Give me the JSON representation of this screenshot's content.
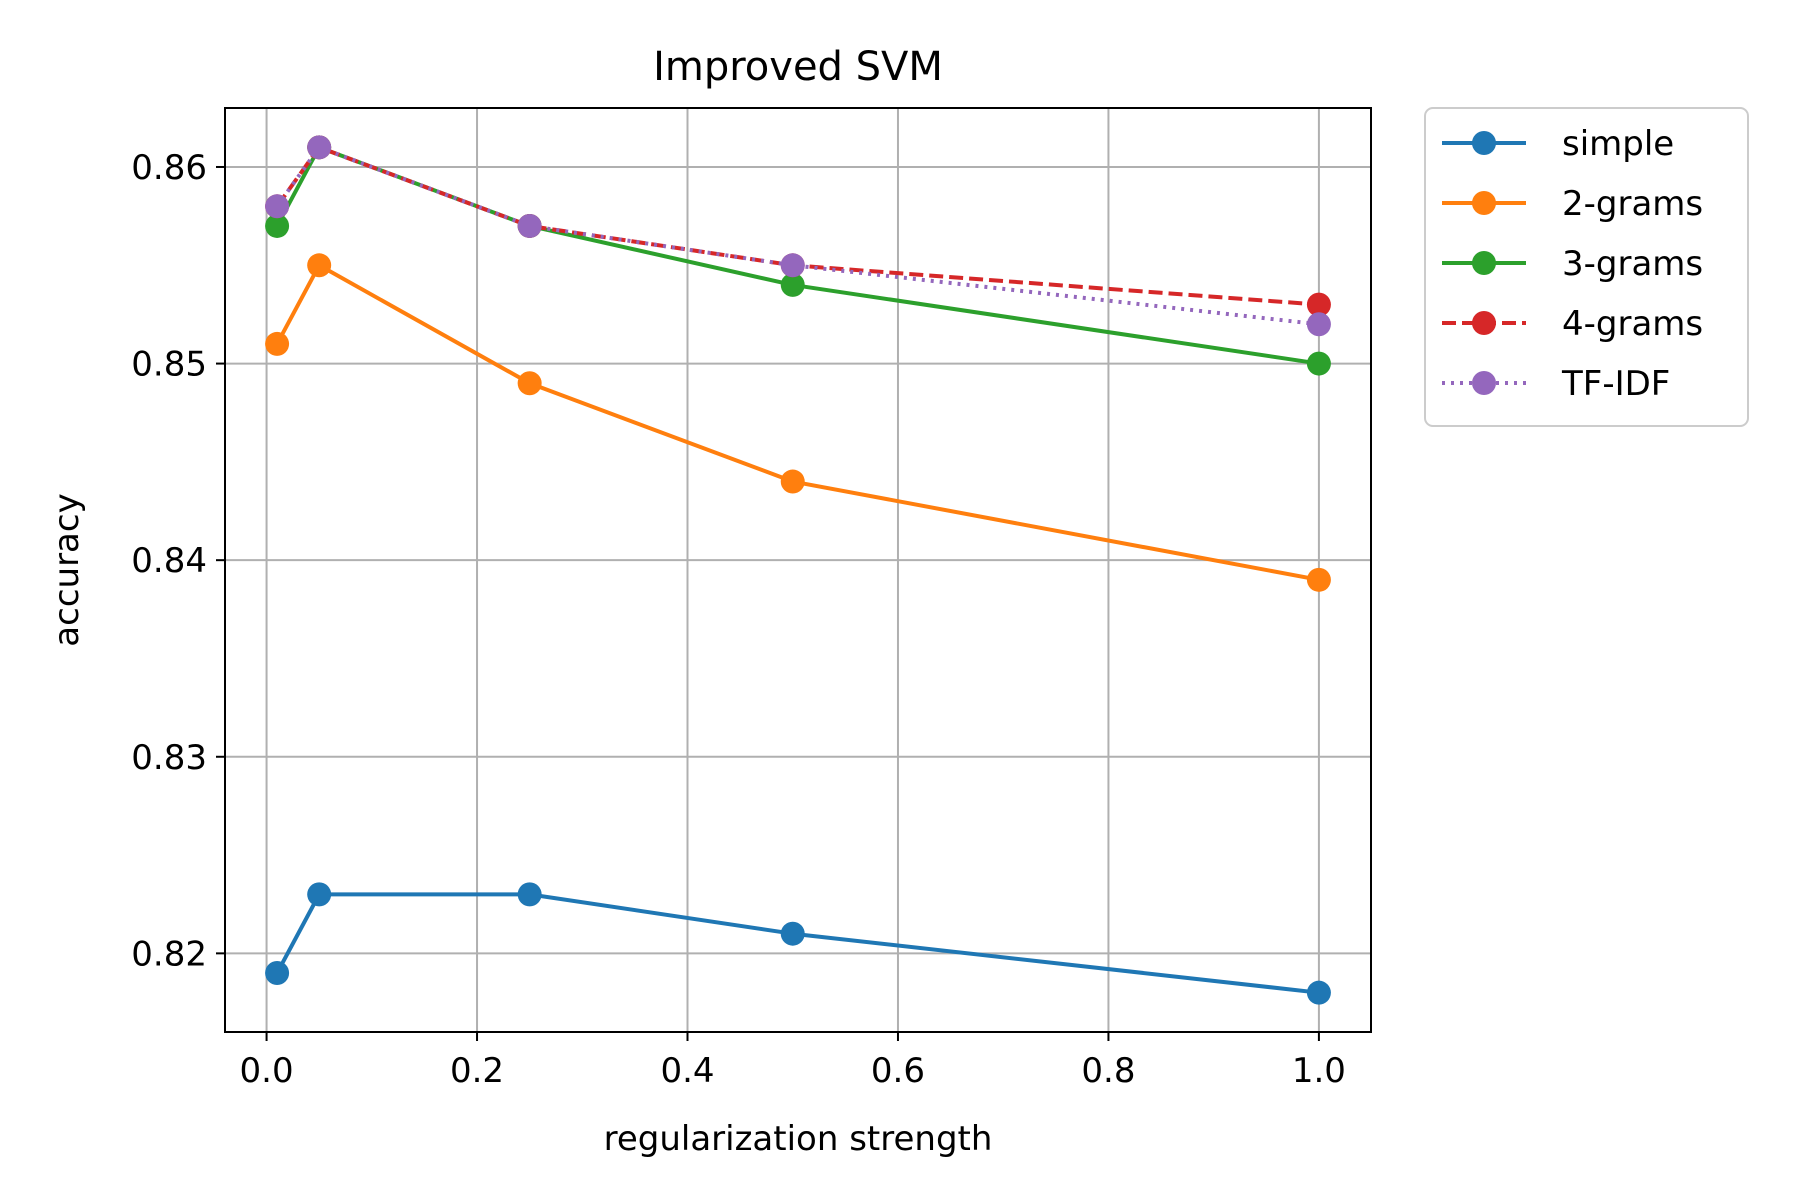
{
  "chart_data": {
    "type": "line",
    "title": "Improved SVM",
    "xlabel": "regularization strength",
    "ylabel": "accuracy",
    "xlim": [
      -0.0395,
      1.0495
    ],
    "ylim": [
      0.816,
      0.863
    ],
    "x_ticks": [
      0.0,
      0.2,
      0.4,
      0.6,
      0.8,
      1.0
    ],
    "x_tick_labels": [
      "0.0",
      "0.2",
      "0.4",
      "0.6",
      "0.8",
      "1.0"
    ],
    "y_ticks": [
      0.82,
      0.83,
      0.84,
      0.85,
      0.86
    ],
    "y_tick_labels": [
      "0.82",
      "0.83",
      "0.84",
      "0.85",
      "0.86"
    ],
    "grid": true,
    "legend_position": "outside-top-right",
    "x": [
      0.01,
      0.05,
      0.25,
      0.5,
      1.0
    ],
    "series": [
      {
        "name": "simple",
        "values": [
          0.819,
          0.823,
          0.823,
          0.821,
          0.818
        ],
        "color": "#1f77b4",
        "linestyle": "solid"
      },
      {
        "name": "2-grams",
        "values": [
          0.851,
          0.855,
          0.849,
          0.844,
          0.839
        ],
        "color": "#ff7f0e",
        "linestyle": "solid"
      },
      {
        "name": "3-grams",
        "values": [
          0.857,
          0.861,
          0.857,
          0.854,
          0.85
        ],
        "color": "#2ca02c",
        "linestyle": "solid"
      },
      {
        "name": "4-grams",
        "values": [
          0.858,
          0.861,
          0.857,
          0.855,
          0.853
        ],
        "color": "#d62728",
        "linestyle": "dashed"
      },
      {
        "name": "TF-IDF",
        "values": [
          0.858,
          0.861,
          0.857,
          0.855,
          0.852
        ],
        "color": "#9467bd",
        "linestyle": "dotted"
      }
    ]
  }
}
